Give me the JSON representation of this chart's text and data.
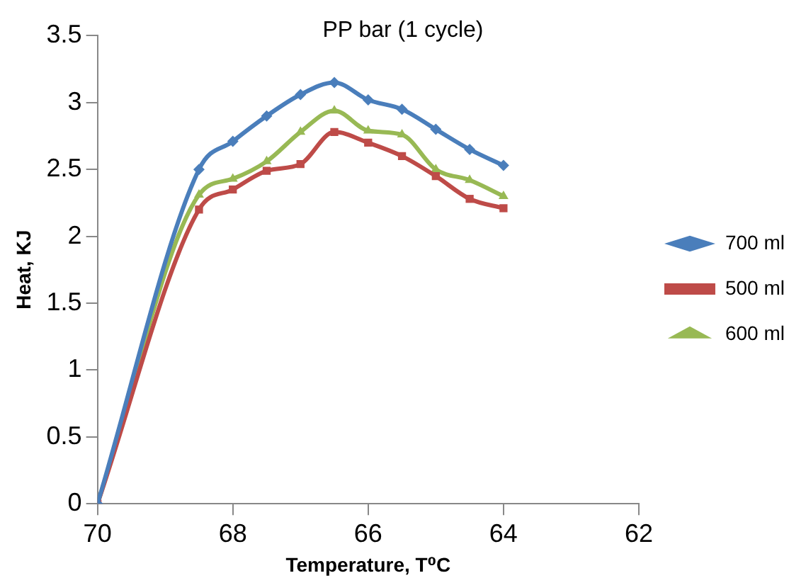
{
  "chart_data": {
    "type": "line",
    "title": "PP bar (1 cycle)",
    "xlabel": "Temperature, T⁰C",
    "ylabel": "Heat, KJ",
    "x": [
      70,
      68.5,
      68,
      67.5,
      67,
      66.5,
      66,
      65.5,
      65,
      64.5,
      64
    ],
    "xlim": [
      70,
      62
    ],
    "xticks": [
      70,
      68,
      66,
      64,
      62
    ],
    "ylim": [
      0,
      3.5
    ],
    "yticks": [
      0,
      0.5,
      1,
      1.5,
      2,
      2.5,
      3,
      3.5
    ],
    "grid": false,
    "legend": "right",
    "line_style": "solid",
    "series": [
      {
        "name": "700 ml",
        "color": "#4a7ebb",
        "marker": "diamond",
        "values": [
          0,
          2.5,
          2.71,
          2.9,
          3.06,
          3.15,
          3.02,
          2.95,
          2.8,
          2.65,
          2.53
        ]
      },
      {
        "name": "500 ml",
        "color": "#be4b48",
        "marker": "square",
        "values": [
          0,
          2.2,
          2.35,
          2.49,
          2.54,
          2.78,
          2.7,
          2.6,
          2.45,
          2.28,
          2.21
        ]
      },
      {
        "name": "600 ml",
        "color": "#98b954",
        "marker": "triangle",
        "values": [
          0,
          2.31,
          2.43,
          2.56,
          2.78,
          2.94,
          2.79,
          2.76,
          2.5,
          2.42,
          2.3
        ]
      }
    ]
  }
}
